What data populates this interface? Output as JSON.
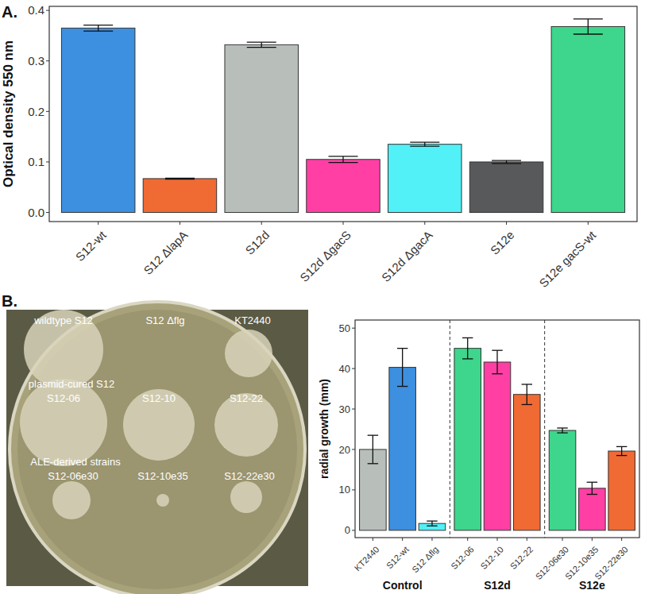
{
  "chart_data": [
    {
      "type": "bar",
      "title": "A.",
      "y_label": "Optical density 550 nm",
      "categories": [
        "S12-wt",
        "S12 ΔlapA",
        "S12d",
        "S12d ΔgacS",
        "S12d ΔgacA",
        "S12e",
        "S12e gacS-wt"
      ],
      "values": [
        0.365,
        0.067,
        0.332,
        0.105,
        0.135,
        0.1,
        0.368
      ],
      "errors": [
        0.006,
        0.001,
        0.005,
        0.006,
        0.004,
        0.003,
        0.015
      ],
      "colors": [
        "#3d8fe0",
        "#f06a34",
        "#b8bfba",
        "#ff3fa4",
        "#52f0f7",
        "#58595b",
        "#3dd68c"
      ],
      "ylim": [
        -0.018,
        0.408
      ],
      "yticks": [
        {
          "value": 0,
          "label": "0.0"
        },
        {
          "value": 0.1,
          "label": "0.1"
        },
        {
          "value": 0.2,
          "label": "0.2"
        },
        {
          "value": 0.3,
          "label": "0.3"
        },
        {
          "value": 0.4,
          "label": "0.4"
        }
      ]
    },
    {
      "type": "bar",
      "title": "B.",
      "y_label": "radial growth (mm)",
      "categories": [
        "KT2440",
        "S12-wt",
        "S12 Δflg",
        "S12-06",
        "S12-10",
        "S12-22",
        "S12-06e30",
        "S12-10e35",
        "S12-22e30"
      ],
      "values": [
        20,
        40.3,
        1.7,
        45,
        41.6,
        33.6,
        24.7,
        10.4,
        19.6
      ],
      "errors": [
        3.5,
        4.7,
        0.6,
        2.6,
        2.9,
        2.5,
        0.6,
        1.5,
        1.1
      ],
      "colors": [
        "#b8bfba",
        "#3d8fe0",
        "#52f0f7",
        "#3dd68c",
        "#ff3fa4",
        "#f06a34",
        "#3dd68c",
        "#ff3fa4",
        "#f06a34"
      ],
      "groups": [
        {
          "name": "Control",
          "from": 0,
          "to": 2
        },
        {
          "name": "S12d",
          "from": 3,
          "to": 5
        },
        {
          "name": "S12e",
          "from": 6,
          "to": 8
        }
      ],
      "ylim": [
        -1.8,
        52
      ],
      "yticks": [
        0,
        10,
        20,
        30,
        40,
        50
      ]
    }
  ],
  "photo": {
    "labels": [
      "wildtype S12",
      "S12 Δflg",
      "KT2440",
      "plasmid-cured S12",
      "S12-06",
      "S12-10",
      "S12-22",
      "ALE-derived strains",
      "S12-06e30",
      "S12-10e35",
      "S12-22e30"
    ]
  }
}
